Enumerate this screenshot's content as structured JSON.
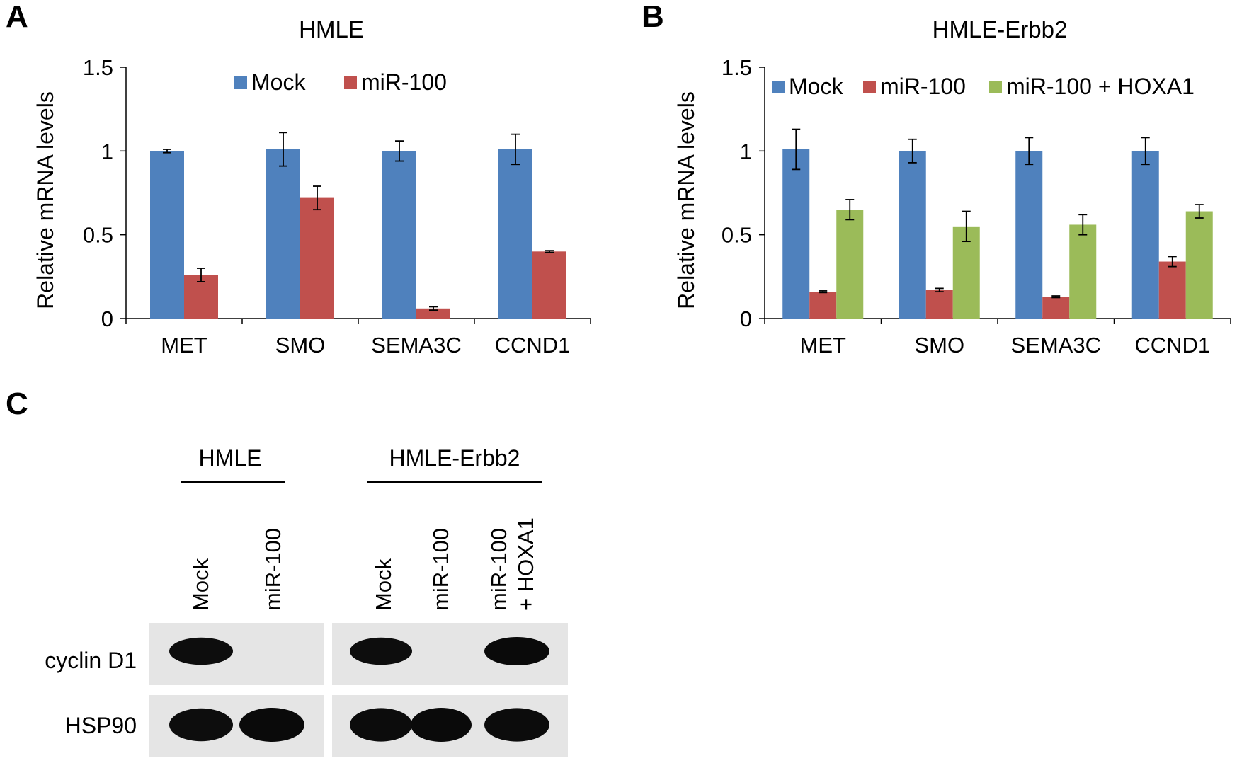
{
  "panels": {
    "A": {
      "letter": "A"
    },
    "B": {
      "letter": "B"
    },
    "C": {
      "letter": "C"
    }
  },
  "colors": {
    "series1": "#4F81BD",
    "series2": "#C0504D",
    "series3": "#9BBB59"
  },
  "chart_data": [
    {
      "panel": "A",
      "type": "bar",
      "title": "HMLE",
      "ylabel": "Relative mRNA levels",
      "xlabel": "",
      "ylim": [
        0,
        1.5
      ],
      "yticks": [
        "0",
        "0.5",
        "1",
        "1.5"
      ],
      "categories": [
        "MET",
        "SMO",
        "SEMA3C",
        "CCND1"
      ],
      "legend_position": "top-center",
      "series": [
        {
          "name": "Mock",
          "color": "#4F81BD",
          "values": [
            1.0,
            1.01,
            1.0,
            1.01
          ],
          "errors": [
            0.01,
            0.1,
            0.06,
            0.09
          ]
        },
        {
          "name": "miR-100",
          "color": "#C0504D",
          "values": [
            0.26,
            0.72,
            0.06,
            0.4
          ],
          "errors": [
            0.04,
            0.07,
            0.01,
            0.005
          ]
        }
      ]
    },
    {
      "panel": "B",
      "type": "bar",
      "title": "HMLE-Erbb2",
      "ylabel": "Relative mRNA levels",
      "xlabel": "",
      "ylim": [
        0,
        1.5
      ],
      "yticks": [
        "0",
        "0.5",
        "1",
        "1.5"
      ],
      "categories": [
        "MET",
        "SMO",
        "SEMA3C",
        "CCND1"
      ],
      "legend_position": "top",
      "series": [
        {
          "name": "Mock",
          "color": "#4F81BD",
          "values": [
            1.01,
            1.0,
            1.0,
            1.0
          ],
          "errors": [
            0.12,
            0.07,
            0.08,
            0.08
          ]
        },
        {
          "name": "miR-100",
          "color": "#C0504D",
          "values": [
            0.16,
            0.17,
            0.13,
            0.34
          ],
          "errors": [
            0.005,
            0.01,
            0.005,
            0.03
          ]
        },
        {
          "name": "miR-100 + HOXA1",
          "color": "#9BBB59",
          "values": [
            0.65,
            0.55,
            0.56,
            0.64
          ],
          "errors": [
            0.06,
            0.09,
            0.06,
            0.04
          ]
        }
      ]
    }
  ],
  "blot": {
    "groups": [
      {
        "label": "HMLE"
      },
      {
        "label": "HMLE-Erbb2"
      }
    ],
    "lanes": [
      {
        "label": "Mock"
      },
      {
        "label": "miR-100"
      },
      {
        "label": "Mock"
      },
      {
        "label": "miR-100"
      },
      {
        "label_line1": "miR-100",
        "label_line2": "+ HOXA1"
      }
    ],
    "rows": [
      {
        "label": "cyclin D1",
        "intensity": [
          0.9,
          0.0,
          0.9,
          0.0,
          1.0
        ]
      },
      {
        "label": "HSP90",
        "intensity": [
          0.9,
          1.0,
          0.95,
          1.0,
          0.95
        ]
      }
    ]
  }
}
